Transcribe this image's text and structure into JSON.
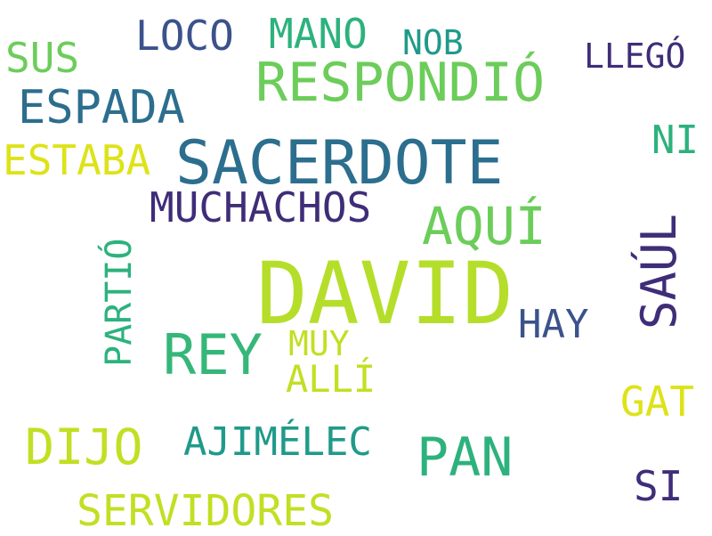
{
  "palette": {
    "background": "#ffffff",
    "lime": "#b5de2b",
    "teal_blue": "#2c6e8e",
    "green": "#6ccd5a",
    "emerald": "#35b779",
    "indigo": "#3f2d78",
    "yellow": "#dde318",
    "slate": "#3b528b",
    "teal": "#1f9a8a",
    "sea_green": "#2db27d",
    "yellow_green": "#c2df23"
  },
  "words": {
    "david": "DAVID",
    "sacerdote": "SACERDOTE",
    "respondio": "RESPONDIÓ",
    "rey": "REY",
    "saul": "SAÚL",
    "pan": "PAN",
    "espada": "ESPADA",
    "aqui": "AQUÍ",
    "dijo": "DIJO",
    "muchachos": "MUCHACHOS",
    "servidores": "SERVIDORES",
    "ajimelec": "AJIMÉLEC",
    "loco": "LOCO",
    "mano": "MANO",
    "sus": "SUS",
    "estaba": "ESTABA",
    "hay": "HAY",
    "alli": "ALLÍ",
    "muy": "MUY",
    "partio": "PARTIÓ",
    "gat": "GAT",
    "si": "SI",
    "ni": "NI",
    "nob": "NOB",
    "llego": "LLEGÓ"
  }
}
